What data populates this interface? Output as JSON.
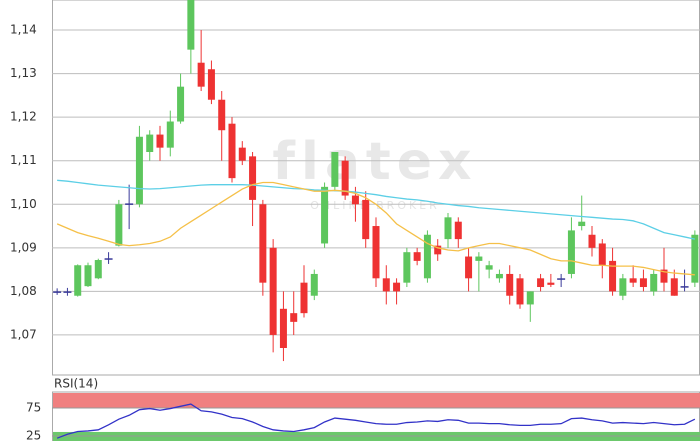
{
  "chart_data": [
    {
      "type": "candlestick",
      "watermark": "flatex",
      "watermark_subtitle": "ONLINE BROKER",
      "ylim": [
        1.0608,
        1.1469
      ],
      "yticks": [
        {
          "value": 1.07,
          "label": "1,07"
        },
        {
          "value": 1.08,
          "label": "1,08"
        },
        {
          "value": 1.09,
          "label": "1,09"
        },
        {
          "value": 1.1,
          "label": "1,10"
        },
        {
          "value": 1.11,
          "label": "1,11"
        },
        {
          "value": 1.12,
          "label": "1,12"
        },
        {
          "value": 1.13,
          "label": "1,13"
        },
        {
          "value": 1.14,
          "label": "1,14"
        }
      ],
      "grid": true,
      "up_color": "#5dc65d",
      "down_color": "#ee3232",
      "doji_color": "#3a3a9a",
      "open": [
        1.08,
        1.08,
        1.079,
        1.0812,
        1.083,
        1.0876,
        1.0905,
        1.1,
        1.1,
        1.112,
        1.116,
        1.113,
        1.119,
        1.1355,
        1.1325,
        1.131,
        1.124,
        1.1185,
        1.113,
        1.111,
        1.1,
        1.09,
        1.076,
        1.075,
        1.082,
        1.079,
        1.091,
        1.104,
        1.11,
        1.102,
        1.101,
        1.095,
        1.083,
        1.082,
        1.082,
        1.089,
        1.083,
        1.0905,
        1.092,
        1.096,
        1.088,
        1.087,
        1.085,
        1.083,
        1.084,
        1.083,
        1.077,
        1.083,
        1.082,
        1.083,
        1.084,
        1.095,
        1.093,
        1.091,
        1.087,
        1.079,
        1.083,
        1.083,
        1.08,
        1.085,
        1.083,
        1.081,
        1.082
      ],
      "high": [
        1.0807,
        1.0808,
        1.0862,
        1.0866,
        1.0875,
        1.089,
        1.101,
        1.1045,
        1.118,
        1.117,
        1.118,
        1.1215,
        1.13,
        1.1469,
        1.14,
        1.133,
        1.126,
        1.12,
        1.1145,
        1.112,
        1.101,
        1.092,
        1.08,
        1.08,
        1.086,
        1.085,
        1.105,
        1.112,
        1.111,
        1.104,
        1.103,
        1.097,
        1.086,
        1.083,
        1.09,
        1.09,
        1.094,
        1.092,
        1.098,
        1.097,
        1.09,
        1.089,
        1.087,
        1.085,
        1.086,
        1.084,
        1.08,
        1.084,
        1.084,
        1.084,
        1.097,
        1.102,
        1.095,
        1.092,
        1.09,
        1.084,
        1.086,
        1.085,
        1.085,
        1.09,
        1.085,
        1.085,
        1.094
      ],
      "low": [
        1.0792,
        1.079,
        1.0788,
        1.081,
        1.0828,
        1.0863,
        1.0903,
        1.0943,
        1.0993,
        1.11,
        1.11,
        1.111,
        1.1185,
        1.13,
        1.126,
        1.123,
        1.11,
        1.105,
        1.109,
        1.095,
        1.079,
        1.066,
        1.064,
        1.07,
        1.074,
        1.078,
        1.09,
        1.103,
        1.101,
        1.096,
        1.09,
        1.081,
        1.077,
        1.077,
        1.081,
        1.086,
        1.082,
        1.087,
        1.09,
        1.09,
        1.08,
        1.08,
        1.083,
        1.082,
        1.077,
        1.076,
        1.073,
        1.08,
        1.081,
        1.081,
        1.083,
        1.094,
        1.088,
        1.083,
        1.079,
        1.078,
        1.081,
        1.08,
        1.079,
        1.08,
        1.079,
        1.08,
        1.081
      ],
      "close": [
        1.08,
        1.0799,
        1.086,
        1.086,
        1.0872,
        1.0875,
        1.1,
        1.1002,
        1.1155,
        1.116,
        1.113,
        1.119,
        1.127,
        1.1469,
        1.127,
        1.124,
        1.117,
        1.106,
        1.11,
        1.101,
        1.082,
        1.07,
        1.067,
        1.073,
        1.075,
        1.084,
        1.104,
        1.112,
        1.102,
        1.1,
        1.092,
        1.083,
        1.08,
        1.08,
        1.089,
        1.087,
        1.093,
        1.0885,
        1.097,
        1.092,
        1.083,
        1.088,
        1.086,
        1.084,
        1.079,
        1.077,
        1.08,
        1.081,
        1.0815,
        1.083,
        1.094,
        1.096,
        1.09,
        1.086,
        1.08,
        1.083,
        1.082,
        1.081,
        1.084,
        1.082,
        1.079,
        1.0812,
        1.093
      ],
      "lines": [
        {
          "color": "#5ccfe6",
          "values": [
            1.1055,
            1.1053,
            1.105,
            1.1047,
            1.1044,
            1.1042,
            1.104,
            1.1038,
            1.1036,
            1.1035,
            1.1036,
            1.1038,
            1.104,
            1.1042,
            1.1044,
            1.1045,
            1.1045,
            1.1045,
            1.1045,
            1.1044,
            1.1042,
            1.104,
            1.1038,
            1.1036,
            1.1035,
            1.1033,
            1.1032,
            1.1031,
            1.103,
            1.1028,
            1.1025,
            1.1022,
            1.1018,
            1.1015,
            1.1012,
            1.101,
            1.1007,
            1.1003,
            1.1,
            1.0997,
            1.0995,
            1.0992,
            1.099,
            1.0988,
            1.0986,
            1.0984,
            1.0982,
            1.098,
            1.0978,
            1.0976,
            1.0974,
            1.0972,
            1.097,
            1.0968,
            1.0966,
            1.0965,
            1.0962,
            1.0955,
            1.0945,
            1.0935,
            1.093,
            1.0925,
            1.092
          ]
        },
        {
          "color": "#f5c048",
          "values": [
            1.0955,
            1.0945,
            1.0935,
            1.0928,
            1.0922,
            1.0915,
            1.0908,
            1.0905,
            1.0907,
            1.091,
            1.0915,
            1.0925,
            1.0945,
            1.096,
            1.0975,
            1.099,
            1.1005,
            1.102,
            1.1035,
            1.1045,
            1.105,
            1.105,
            1.1045,
            1.104,
            1.1035,
            1.103,
            1.103,
            1.1032,
            1.103,
            1.1025,
            1.1015,
            1.1,
            1.098,
            1.0955,
            1.094,
            1.0925,
            1.091,
            1.09,
            1.0895,
            1.0893,
            1.09,
            1.0905,
            1.091,
            1.091,
            1.0905,
            1.09,
            1.0895,
            1.0885,
            1.0875,
            1.087,
            1.087,
            1.0865,
            1.086,
            1.086,
            1.0858,
            1.0858,
            1.0858,
            1.0855,
            1.085,
            1.0845,
            1.0842,
            1.084,
            1.0838
          ]
        }
      ]
    },
    {
      "type": "line",
      "title": "RSI(14)",
      "color": "#3232c8",
      "ylim": [
        16,
        103.6
      ],
      "yticks": [
        25,
        75
      ],
      "upper_band_color": "#f08080",
      "lower_band_color": "#6cc86c",
      "values": [
        21,
        28,
        33,
        34,
        36,
        45,
        55,
        62,
        72,
        74,
        71,
        74,
        78,
        82,
        70,
        68,
        64,
        58,
        56,
        50,
        42,
        36,
        34,
        33,
        36,
        40,
        50,
        57,
        55,
        53,
        50,
        47,
        46,
        46,
        49,
        50,
        52,
        51,
        54,
        53,
        48,
        48,
        47,
        47,
        45,
        44,
        44,
        46,
        46,
        47,
        56,
        57,
        54,
        52,
        48,
        49,
        48,
        47,
        49,
        47,
        45,
        46,
        55
      ]
    }
  ]
}
